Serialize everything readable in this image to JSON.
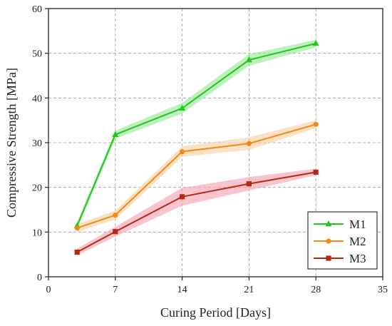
{
  "chart_data": {
    "type": "line",
    "title": "",
    "xlabel": "Curing Period [Days]",
    "ylabel": "Compressive Strength [MPa]",
    "xlim": [
      0,
      35
    ],
    "ylim": [
      0,
      60
    ],
    "xticks": [
      0,
      7,
      14,
      21,
      28,
      35
    ],
    "yticks": [
      0,
      10,
      20,
      30,
      40,
      50,
      60
    ],
    "grid": "dashed",
    "legend_position": "bottom-right",
    "x": [
      3,
      7,
      14,
      21,
      28
    ],
    "series": [
      {
        "name": "M1",
        "values": [
          11.4,
          31.8,
          37.7,
          48.5,
          52.2
        ],
        "lower": [
          10.6,
          30.9,
          36.5,
          47.2,
          51.3
        ],
        "upper": [
          12.2,
          32.7,
          38.9,
          49.8,
          53.0
        ],
        "color": "#22c51b",
        "band_color": "#9be89a",
        "marker": "triangle"
      },
      {
        "name": "M2",
        "values": [
          10.9,
          13.8,
          28.0,
          29.8,
          34.1
        ],
        "lower": [
          10.0,
          12.8,
          26.8,
          28.4,
          33.2
        ],
        "upper": [
          11.8,
          14.8,
          29.2,
          31.2,
          35.0
        ],
        "color": "#f28a17",
        "band_color": "#f9d2a4",
        "marker": "circle"
      },
      {
        "name": "M3",
        "values": [
          5.5,
          10.1,
          17.9,
          20.8,
          23.4
        ],
        "lower": [
          4.8,
          9.0,
          15.9,
          19.3,
          22.7
        ],
        "upper": [
          6.3,
          11.2,
          19.9,
          22.3,
          24.2
        ],
        "color": "#b52a14",
        "band_color": "#f7a4b4",
        "marker": "square"
      }
    ]
  }
}
